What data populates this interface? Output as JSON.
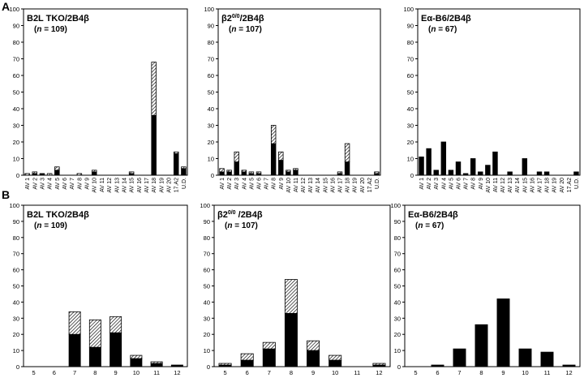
{
  "figure": {
    "panel_a_letter": "A",
    "panel_b_letter": "B"
  },
  "chart_data": [
    {
      "type": "bar",
      "stacked": true,
      "title": "B2L TKO/2B4β",
      "n_label": "(n = 109)",
      "xlabel": "",
      "ylabel": "",
      "ylim": [
        0,
        100
      ],
      "yticks": [
        0,
        10,
        20,
        30,
        40,
        50,
        60,
        70,
        80,
        90,
        100
      ],
      "categories": [
        "AV 1",
        "AV 2",
        "AV 3",
        "AV 4",
        "AV 5",
        "AV 6",
        "AV 7",
        "AV 8",
        "AV 9",
        "AV 10",
        "AV 11",
        "AV 12",
        "AV 13",
        "AV 14",
        "AV 15",
        "AV 16",
        "AV 17",
        "AV 18",
        "AV 19",
        "AV 20",
        "17.A2",
        "U.D."
      ],
      "series": [
        {
          "style": "solid",
          "values": [
            0,
            1,
            1,
            0,
            3,
            0,
            0,
            0,
            0,
            2,
            0,
            0,
            0,
            0,
            1,
            0,
            0,
            36,
            0,
            0,
            13,
            4
          ]
        },
        {
          "style": "hatched",
          "values": [
            1,
            1,
            0,
            1,
            2,
            0,
            0,
            1,
            0,
            1,
            0,
            0,
            0,
            0,
            1,
            0,
            0,
            32,
            0,
            0,
            1,
            1
          ]
        }
      ]
    },
    {
      "type": "bar",
      "stacked": true,
      "title_parts": [
        "β2",
        "0/0",
        "/2B4β"
      ],
      "n_label": "(n = 107)",
      "xlabel": "",
      "ylabel": "",
      "ylim": [
        0,
        100
      ],
      "yticks": [
        0,
        10,
        20,
        30,
        40,
        50,
        60,
        70,
        80,
        90,
        100
      ],
      "categories": [
        "AV 1",
        "AV 2",
        "AV 3",
        "AV 4",
        "AV 5",
        "AV 6",
        "AV 7",
        "AV 8",
        "AV 9",
        "AV 10",
        "AV 11",
        "AV 12",
        "AV 13",
        "AV 14",
        "AV 15",
        "AV 16",
        "AV 17",
        "AV 18",
        "AV 19",
        "AV 20",
        "17.A2",
        "U.D."
      ],
      "series": [
        {
          "style": "solid",
          "values": [
            2,
            2,
            8,
            2,
            1,
            1,
            0,
            19,
            9,
            2,
            3,
            0,
            0,
            0,
            0,
            0,
            1,
            8,
            0,
            0,
            0,
            1
          ]
        },
        {
          "style": "hatched",
          "values": [
            2,
            1,
            6,
            1,
            1,
            1,
            0,
            11,
            5,
            1,
            1,
            0,
            0,
            0,
            0,
            0,
            1,
            11,
            0,
            0,
            0,
            1
          ]
        }
      ]
    },
    {
      "type": "bar",
      "stacked": false,
      "title": "Eα-B6/2B4β",
      "n_label": "(n = 67)",
      "xlabel": "",
      "ylabel": "",
      "ylim": [
        0,
        100
      ],
      "yticks": [
        0,
        10,
        20,
        30,
        40,
        50,
        60,
        70,
        80,
        90,
        100
      ],
      "categories": [
        "AV 1",
        "AV 2",
        "AV 3",
        "AV 4",
        "AV 5",
        "AV 6",
        "AV 7",
        "AV 8",
        "AV 9",
        "AV 10",
        "AV 11",
        "AV 12",
        "AV 13",
        "AV 14",
        "AV 15",
        "AV 16",
        "AV 17",
        "AV 18",
        "AV 19",
        "AV 20",
        "17.A2",
        "U.D."
      ],
      "series": [
        {
          "style": "solid",
          "values": [
            11,
            16,
            3,
            20,
            3,
            8,
            1,
            10,
            2,
            6,
            14,
            0,
            2,
            0,
            10,
            0,
            2,
            2,
            0,
            0,
            0,
            2
          ]
        }
      ]
    },
    {
      "type": "bar",
      "stacked": true,
      "title": "B2L TKO/2B4β",
      "n_label": "(n = 109)",
      "xlabel": "",
      "ylabel": "",
      "ylim": [
        0,
        100
      ],
      "yticks": [
        0,
        10,
        20,
        30,
        40,
        50,
        60,
        70,
        80,
        90,
        100
      ],
      "categories": [
        "5",
        "6",
        "7",
        "8",
        "9",
        "10",
        "11",
        "12"
      ],
      "series": [
        {
          "style": "solid",
          "values": [
            0,
            0,
            20,
            12,
            21,
            5,
            2,
            1
          ]
        },
        {
          "style": "hatched",
          "values": [
            0,
            0,
            14,
            17,
            10,
            2,
            1,
            0
          ]
        }
      ]
    },
    {
      "type": "bar",
      "stacked": true,
      "title_parts": [
        "β2",
        "0/0",
        " /2B4β"
      ],
      "n_label": "(n = 107)",
      "xlabel": "",
      "ylabel": "",
      "ylim": [
        0,
        100
      ],
      "yticks": [
        0,
        10,
        20,
        30,
        40,
        50,
        60,
        70,
        80,
        90,
        100
      ],
      "categories": [
        "5",
        "6",
        "7",
        "8",
        "9",
        "10",
        "11",
        "12"
      ],
      "series": [
        {
          "style": "solid",
          "values": [
            1,
            4,
            11,
            33,
            10,
            4,
            0,
            1
          ]
        },
        {
          "style": "hatched",
          "values": [
            1,
            4,
            4,
            21,
            6,
            3,
            0,
            1
          ]
        }
      ]
    },
    {
      "type": "bar",
      "stacked": false,
      "title": "Eα-B6/2B4β",
      "n_label": "(n = 67)",
      "xlabel": "",
      "ylabel": "",
      "ylim": [
        0,
        100
      ],
      "yticks": [
        0,
        10,
        20,
        30,
        40,
        50,
        60,
        70,
        80,
        90,
        100
      ],
      "categories": [
        "5",
        "6",
        "7",
        "8",
        "9",
        "10",
        "11",
        "12"
      ],
      "series": [
        {
          "style": "solid",
          "values": [
            0,
            1,
            11,
            26,
            42,
            11,
            9,
            1
          ]
        }
      ]
    }
  ]
}
